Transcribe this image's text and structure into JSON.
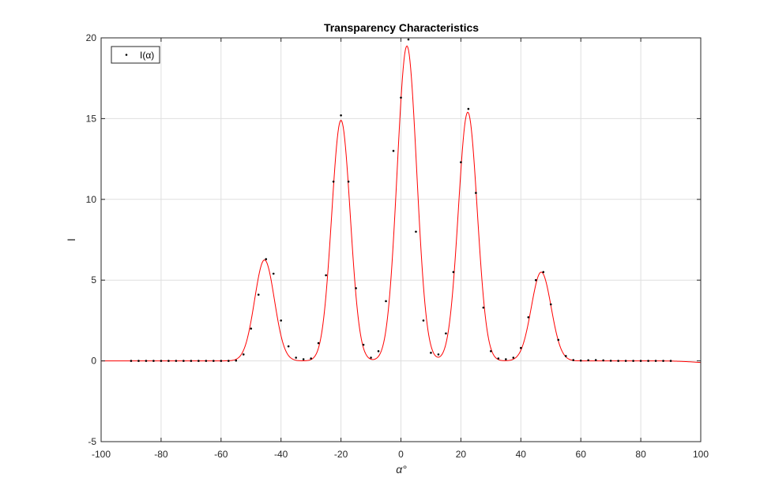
{
  "chart_data": {
    "type": "line",
    "title": "Transparency Characteristics",
    "xlabel": "α°",
    "ylabel": "I",
    "xlim": [
      -100,
      100
    ],
    "ylim": [
      -5,
      20
    ],
    "xticks": [
      -100,
      -80,
      -60,
      -40,
      -20,
      0,
      20,
      40,
      60,
      80,
      100
    ],
    "yticks": [
      -5,
      0,
      5,
      10,
      15,
      20
    ],
    "xtick_labels": [
      "-100",
      "-80",
      "-60",
      "-40",
      "-20",
      "0",
      "20",
      "40",
      "60",
      "80",
      "100"
    ],
    "ytick_labels": [
      "-5",
      "0",
      "5",
      "10",
      "15",
      "20"
    ],
    "grid": true,
    "legend_position": "top-left",
    "colors": {
      "points": "#000000",
      "fit": "#ff0000",
      "grid": "#dfdfdf",
      "axes": "#262626"
    },
    "series": [
      {
        "name": "I(α)",
        "style": "points",
        "x": [
          -90,
          -87.5,
          -85,
          -82.5,
          -80,
          -77.5,
          -75,
          -72.5,
          -70,
          -67.5,
          -65,
          -62.5,
          -60,
          -57.5,
          -55,
          -52.5,
          -50,
          -47.5,
          -45,
          -42.5,
          -40,
          -37.5,
          -35,
          -32.5,
          -30,
          -27.5,
          -25,
          -22.5,
          -20,
          -17.5,
          -15,
          -12.5,
          -10,
          -7.5,
          -5,
          -2.5,
          0,
          2.5,
          5,
          7.5,
          10,
          12.5,
          15,
          17.5,
          20,
          22.5,
          25,
          27.5,
          30,
          32.5,
          35,
          37.5,
          40,
          42.5,
          45,
          47.5,
          50,
          52.5,
          55,
          57.5,
          60,
          62.5,
          65,
          67.5,
          70,
          72.5,
          75,
          77.5,
          80,
          82.5,
          85,
          87.5,
          90
        ],
        "y": [
          0,
          0,
          0,
          0,
          0,
          0,
          0,
          0,
          0,
          0,
          0,
          0,
          0,
          0,
          0.02,
          0.4,
          2.0,
          4.1,
          6.3,
          5.4,
          2.5,
          0.9,
          0.2,
          0.1,
          0.15,
          1.1,
          5.3,
          11.1,
          15.2,
          11.1,
          4.5,
          1.0,
          0.2,
          0.6,
          3.7,
          13.0,
          16.3,
          19.9,
          8.0,
          2.5,
          0.5,
          0.4,
          1.7,
          5.5,
          12.3,
          15.6,
          10.4,
          3.3,
          0.6,
          0.15,
          0.1,
          0.2,
          0.8,
          2.7,
          5.0,
          5.5,
          3.5,
          1.3,
          0.3,
          0.05,
          0.02,
          0.04,
          0.05,
          0.03,
          0.01,
          0,
          0,
          0,
          0,
          0,
          0,
          0,
          0
        ]
      },
      {
        "style": "line",
        "peaks": [
          {
            "center": -45.5,
            "height": 6.25,
            "width": 3.3
          },
          {
            "center": -20.0,
            "height": 14.9,
            "width": 3.1
          },
          {
            "center": 2.0,
            "height": 19.5,
            "width": 3.25
          },
          {
            "center": 22.3,
            "height": 15.4,
            "width": 3.15
          },
          {
            "center": 46.8,
            "height": 5.5,
            "width": 3.3
          }
        ],
        "baseline_end_x": 100,
        "baseline_end_y": -0.1
      }
    ]
  }
}
